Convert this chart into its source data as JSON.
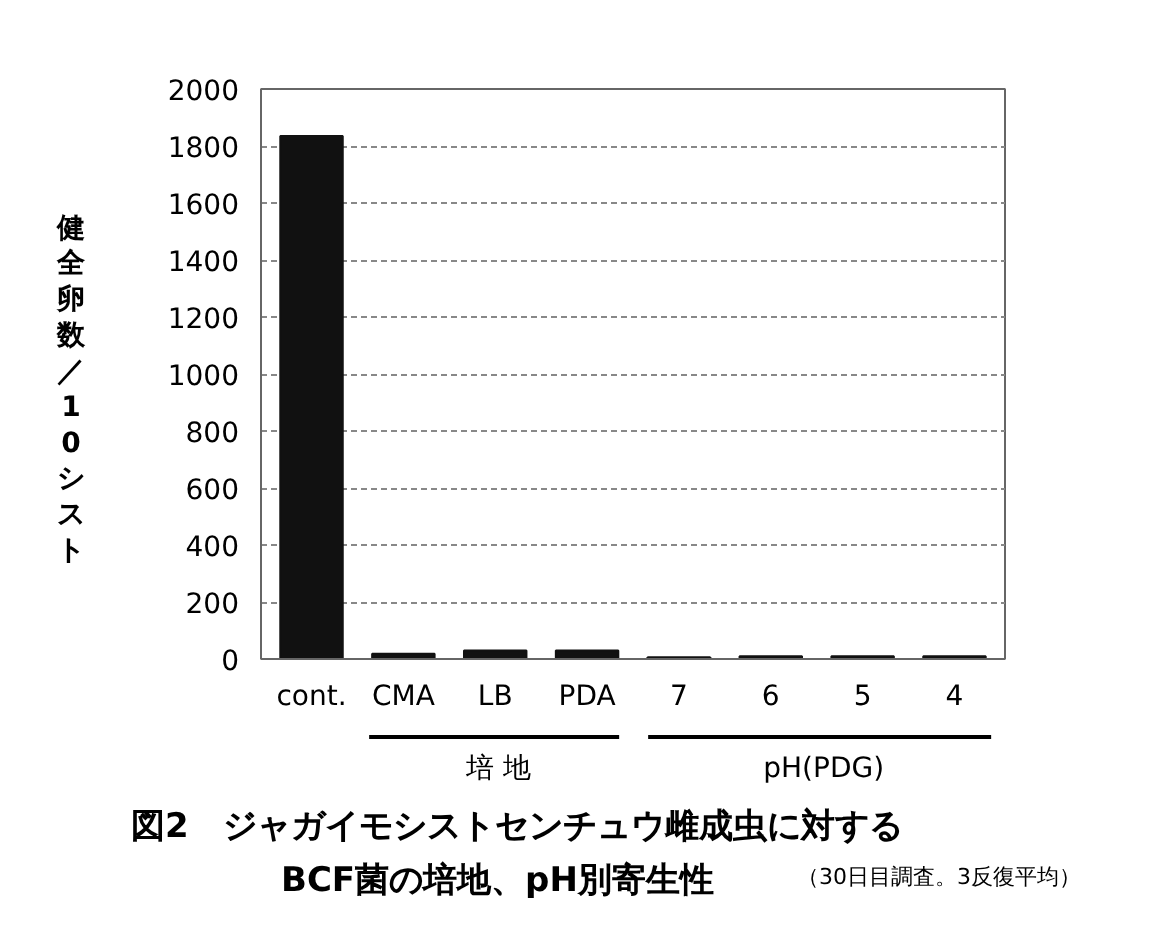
{
  "chart_data": {
    "type": "bar",
    "title": "図2　ジャガイモシストセンチュウ雌成虫に対する\nBCF菌の培地、pH別寄生性",
    "subtitle": "（30日目調査。3反復平均）",
    "ylabel": "健全卵数／10シスト",
    "categories": [
      "cont.",
      "CMA",
      "LB",
      "PDA",
      "7",
      "6",
      "5",
      "4"
    ],
    "values": [
      1835,
      18,
      30,
      30,
      6,
      10,
      10,
      10
    ],
    "color": "#111111",
    "ylim": [
      0,
      2000
    ],
    "yticks": [
      0,
      200,
      400,
      600,
      800,
      1000,
      1200,
      1400,
      1600,
      1800,
      2000
    ],
    "grid": "y",
    "annotations": [
      "培 地",
      "pH(PDG)"
    ]
  }
}
